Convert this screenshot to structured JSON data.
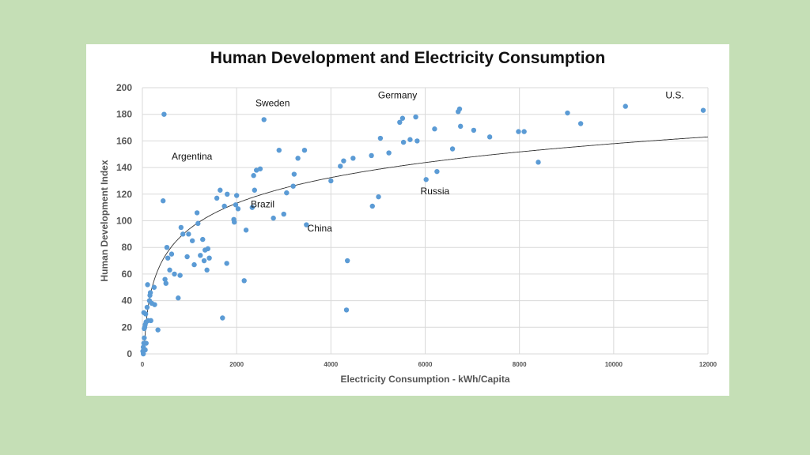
{
  "chart_data": {
    "type": "scatter",
    "title": "Human Development and Electricity Consumption",
    "xlabel": "Electricity Consumption - kWh/Capita",
    "ylabel": "Human Development Index",
    "xlim": [
      0,
      12000
    ],
    "ylim": [
      0,
      200
    ],
    "x_ticks": [
      0,
      2000,
      4000,
      6000,
      8000,
      10000,
      12000
    ],
    "y_ticks": [
      0,
      20,
      40,
      60,
      80,
      100,
      120,
      140,
      160,
      180,
      200
    ],
    "grid": true,
    "legend": "none",
    "point_color": "#5b9bd5",
    "trendline": {
      "type": "logarithmic",
      "color": "#333333"
    },
    "annotations": [
      {
        "text": "Sweden",
        "x": 2400,
        "y": 186
      },
      {
        "text": "Germany",
        "x": 5000,
        "y": 192
      },
      {
        "text": "U.S.",
        "x": 11100,
        "y": 192
      },
      {
        "text": "Argentina",
        "x": 620,
        "y": 146
      },
      {
        "text": "Russia",
        "x": 5900,
        "y": 120
      },
      {
        "text": "Brazil",
        "x": 2300,
        "y": 110
      },
      {
        "text": "China",
        "x": 3500,
        "y": 92
      }
    ],
    "points": [
      [
        10,
        2
      ],
      [
        20,
        5
      ],
      [
        30,
        8
      ],
      [
        40,
        12
      ],
      [
        40,
        19
      ],
      [
        50,
        20
      ],
      [
        60,
        22
      ],
      [
        30,
        31
      ],
      [
        70,
        30
      ],
      [
        80,
        24
      ],
      [
        100,
        35
      ],
      [
        110,
        52
      ],
      [
        150,
        40
      ],
      [
        160,
        44
      ],
      [
        170,
        46
      ],
      [
        180,
        25
      ],
      [
        200,
        38
      ],
      [
        250,
        50
      ],
      [
        260,
        37
      ],
      [
        330,
        18
      ],
      [
        20,
        0
      ],
      [
        30,
        3
      ],
      [
        60,
        3
      ],
      [
        80,
        8
      ],
      [
        120,
        25
      ],
      [
        440,
        115
      ],
      [
        460,
        180
      ],
      [
        480,
        56
      ],
      [
        500,
        53
      ],
      [
        520,
        80
      ],
      [
        540,
        72
      ],
      [
        580,
        63
      ],
      [
        620,
        75
      ],
      [
        680,
        60
      ],
      [
        760,
        42
      ],
      [
        800,
        59
      ],
      [
        820,
        95
      ],
      [
        860,
        90
      ],
      [
        950,
        73
      ],
      [
        980,
        90
      ],
      [
        1060,
        85
      ],
      [
        1100,
        67
      ],
      [
        1160,
        106
      ],
      [
        1180,
        98
      ],
      [
        1230,
        74
      ],
      [
        1280,
        86
      ],
      [
        1310,
        70
      ],
      [
        1330,
        78
      ],
      [
        1370,
        63
      ],
      [
        1390,
        79
      ],
      [
        1420,
        72
      ],
      [
        1580,
        117
      ],
      [
        1650,
        123
      ],
      [
        1700,
        27
      ],
      [
        1740,
        111
      ],
      [
        1790,
        68
      ],
      [
        1800,
        120
      ],
      [
        1940,
        101
      ],
      [
        1950,
        99
      ],
      [
        1980,
        112
      ],
      [
        2000,
        119
      ],
      [
        2030,
        109
      ],
      [
        2160,
        55
      ],
      [
        2200,
        93
      ],
      [
        2330,
        110
      ],
      [
        2360,
        134
      ],
      [
        2380,
        123
      ],
      [
        2420,
        138
      ],
      [
        2500,
        139
      ],
      [
        2580,
        176
      ],
      [
        2780,
        102
      ],
      [
        2900,
        153
      ],
      [
        3000,
        105
      ],
      [
        3060,
        121
      ],
      [
        3200,
        126
      ],
      [
        3220,
        135
      ],
      [
        3300,
        147
      ],
      [
        3440,
        153
      ],
      [
        3480,
        97
      ],
      [
        4000,
        130
      ],
      [
        4200,
        141
      ],
      [
        4270,
        145
      ],
      [
        4330,
        33
      ],
      [
        4350,
        70
      ],
      [
        4470,
        147
      ],
      [
        4860,
        149
      ],
      [
        4880,
        111
      ],
      [
        5010,
        118
      ],
      [
        5050,
        162
      ],
      [
        5230,
        151
      ],
      [
        5460,
        174
      ],
      [
        5520,
        177
      ],
      [
        5540,
        159
      ],
      [
        5680,
        161
      ],
      [
        5800,
        178
      ],
      [
        5830,
        160
      ],
      [
        6020,
        131
      ],
      [
        6200,
        169
      ],
      [
        6250,
        137
      ],
      [
        6580,
        154
      ],
      [
        6700,
        182
      ],
      [
        6730,
        184
      ],
      [
        6750,
        171
      ],
      [
        7030,
        168
      ],
      [
        7370,
        163
      ],
      [
        7980,
        167
      ],
      [
        8100,
        167
      ],
      [
        8400,
        144
      ],
      [
        9020,
        181
      ],
      [
        9300,
        173
      ],
      [
        10250,
        186
      ],
      [
        11900,
        183
      ]
    ]
  }
}
